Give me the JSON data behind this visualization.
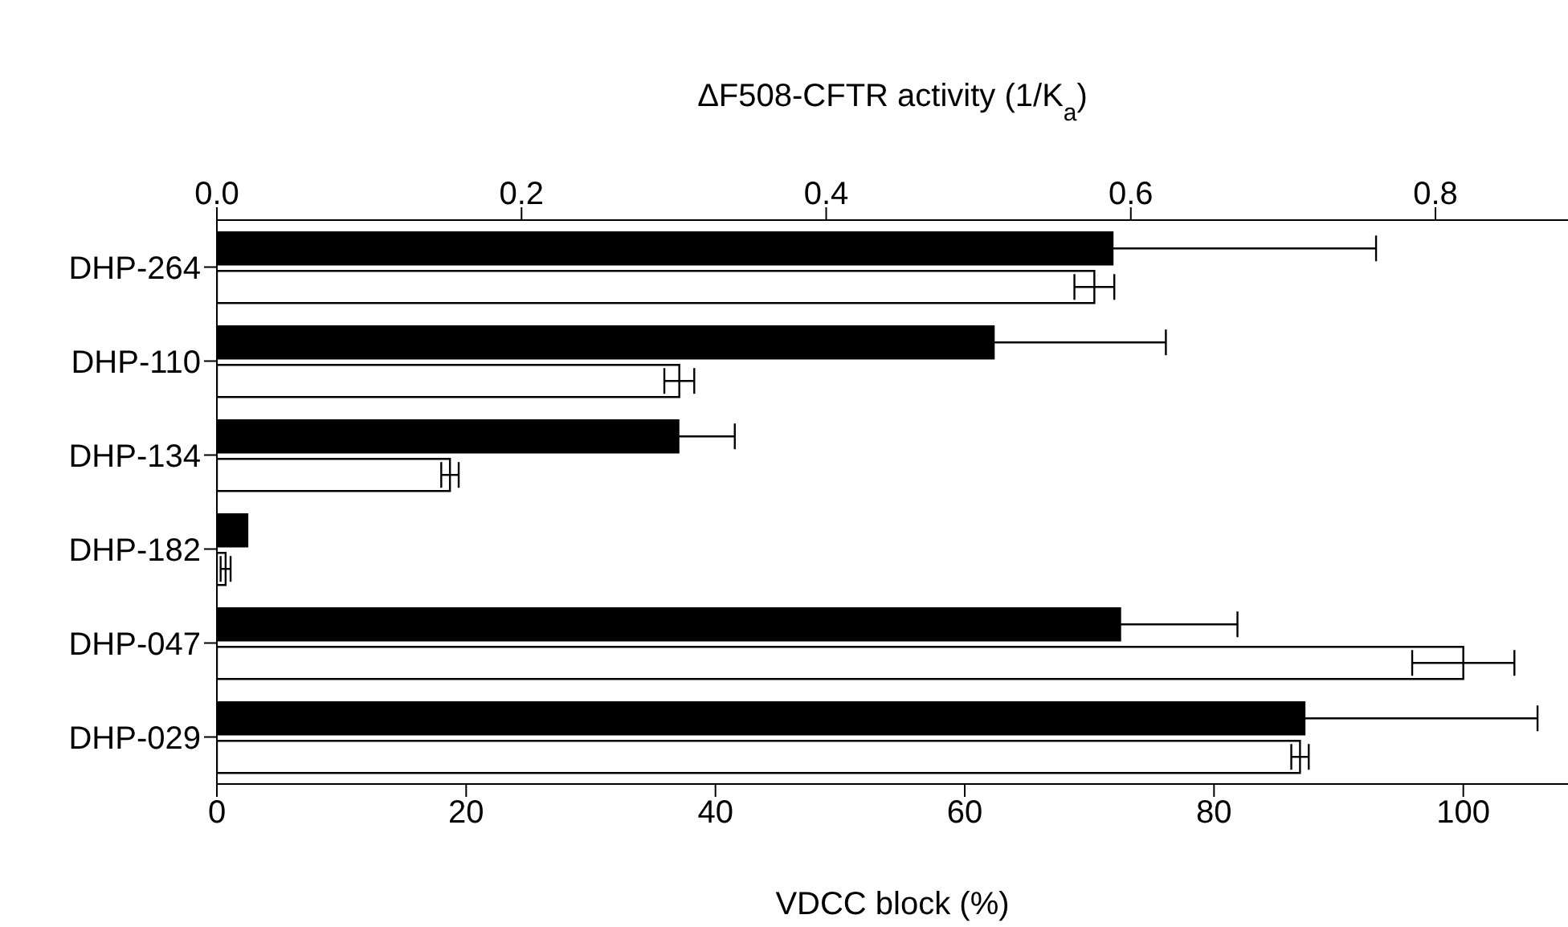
{
  "chart_data": {
    "type": "bar",
    "orientation": "horizontal",
    "x2label": "ΔF508-CFTR activity (1/K$_{a}$)",
    "xlabel": "VDCC block (%)",
    "categories": [
      "DHP-264",
      "DHP-110",
      "DHP-134",
      "DHP-182",
      "DHP-047",
      "DHP-029"
    ],
    "series": [
      {
        "color": "#000000",
        "axis": "x2",
        "values": [
          0.588,
          0.51,
          0.303,
          0.02,
          0.593,
          0.714
        ],
        "errors": [
          0.173,
          0.113,
          0.037,
          null,
          0.077,
          0.153
        ]
      },
      {
        "color": "#ffffff",
        "values": [
          70.4,
          37.1,
          18.7,
          0.7,
          100,
          86.9
        ],
        "errors": [
          1.6,
          1.2,
          0.7,
          0.4,
          4.1,
          0.7
        ]
      }
    ],
    "xlim": [
      0,
      108.4
    ],
    "xticks": [
      0,
      20,
      40,
      60,
      80,
      100
    ],
    "x2lim": [
      0,
      0.887
    ],
    "x2ticks": [
      {
        "value": 0,
        "label": "0.0"
      },
      {
        "value": 0.2,
        "label": "0.2"
      },
      {
        "value": 0.4,
        "label": "0.4"
      },
      {
        "value": 0.6,
        "label": "0.6"
      },
      {
        "value": 0.8,
        "label": "0.8"
      }
    ]
  }
}
